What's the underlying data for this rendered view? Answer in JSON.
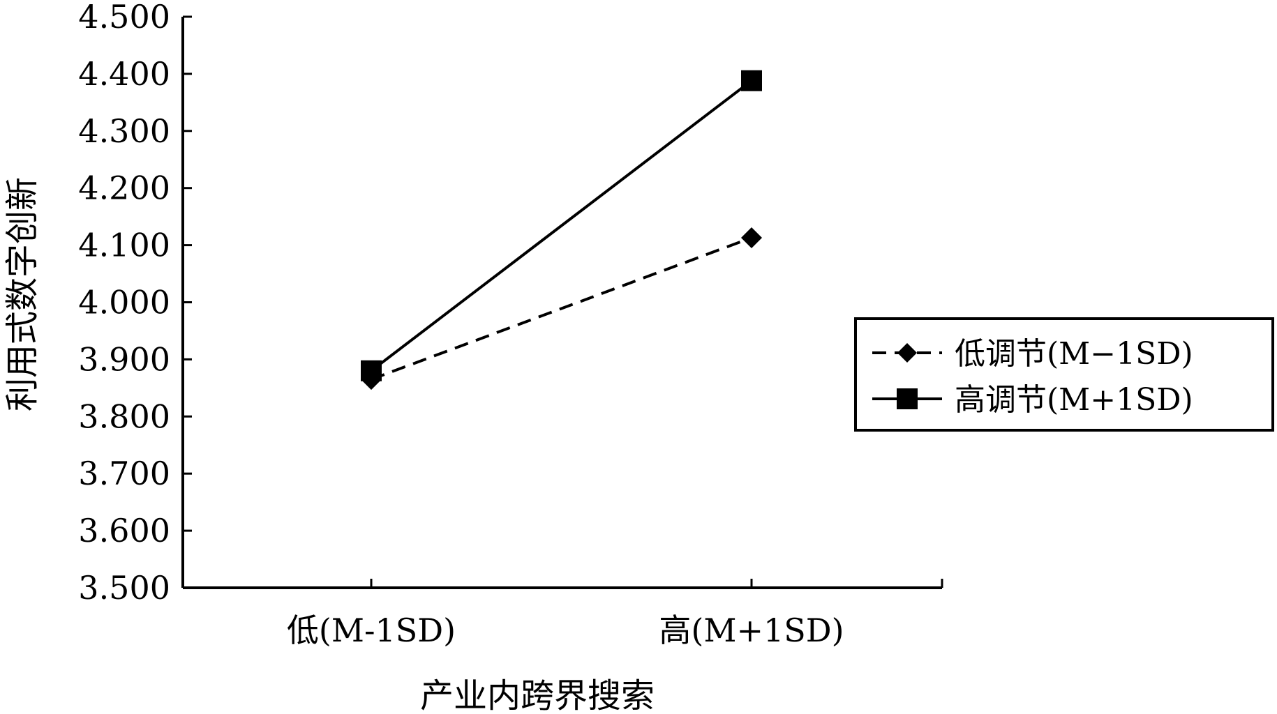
{
  "chart_data": {
    "type": "line",
    "xlabel": "产业内跨界搜索",
    "ylabel": "利用式数字创新",
    "categories": [
      "低(M-1SD)",
      "高(M+1SD)"
    ],
    "ylim": [
      3.5,
      4.5
    ],
    "yticks": [
      "3.500",
      "3.600",
      "3.700",
      "3.800",
      "3.900",
      "4.000",
      "4.100",
      "4.200",
      "4.300",
      "4.400",
      "4.500"
    ],
    "series": [
      {
        "name": "低调节(M−1SD)",
        "values": [
          3.865,
          4.113
        ],
        "marker": "diamond",
        "line": "dashed",
        "color": "#000000"
      },
      {
        "name": "高调节(M+1SD)",
        "values": [
          3.88,
          4.388
        ],
        "marker": "square",
        "line": "solid",
        "color": "#000000"
      }
    ],
    "grid": false,
    "legend_position": "right"
  }
}
